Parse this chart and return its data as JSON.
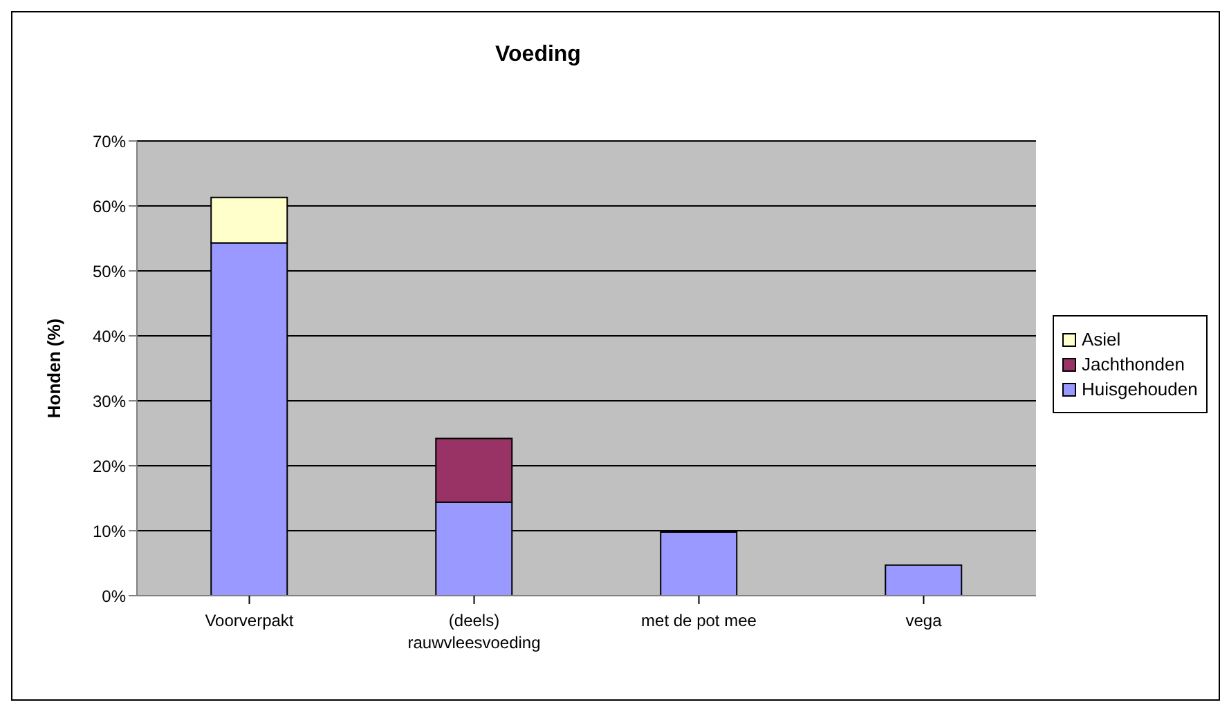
{
  "chart_data": {
    "type": "bar",
    "title": "Voeding",
    "ylabel": "Honden (%)",
    "categories": [
      "Voorverpakt",
      "(deels) rauwvleesvoeding",
      "met de pot mee",
      "vega"
    ],
    "stacked": true,
    "series": [
      {
        "name": "Huisgehouden",
        "color": "#9999ff",
        "values": [
          54.3,
          14.4,
          9.8,
          4.7
        ]
      },
      {
        "name": "Jachthonden",
        "color": "#993366",
        "values": [
          null,
          9.8,
          null,
          null
        ]
      },
      {
        "name": "Asiel",
        "color": "#ffffcc",
        "values": [
          7,
          null,
          null,
          null
        ]
      }
    ],
    "ylim": [
      0,
      70
    ],
    "yticks": [
      {
        "value": 0,
        "label": "0%"
      },
      {
        "value": 10,
        "label": "10%"
      },
      {
        "value": 20,
        "label": "20%"
      },
      {
        "value": 30,
        "label": "30%"
      },
      {
        "value": 40,
        "label": "40%"
      },
      {
        "value": 50,
        "label": "50%"
      },
      {
        "value": 60,
        "label": "60%"
      },
      {
        "value": 70,
        "label": "70%"
      }
    ],
    "grid": "y",
    "legend": "right"
  }
}
